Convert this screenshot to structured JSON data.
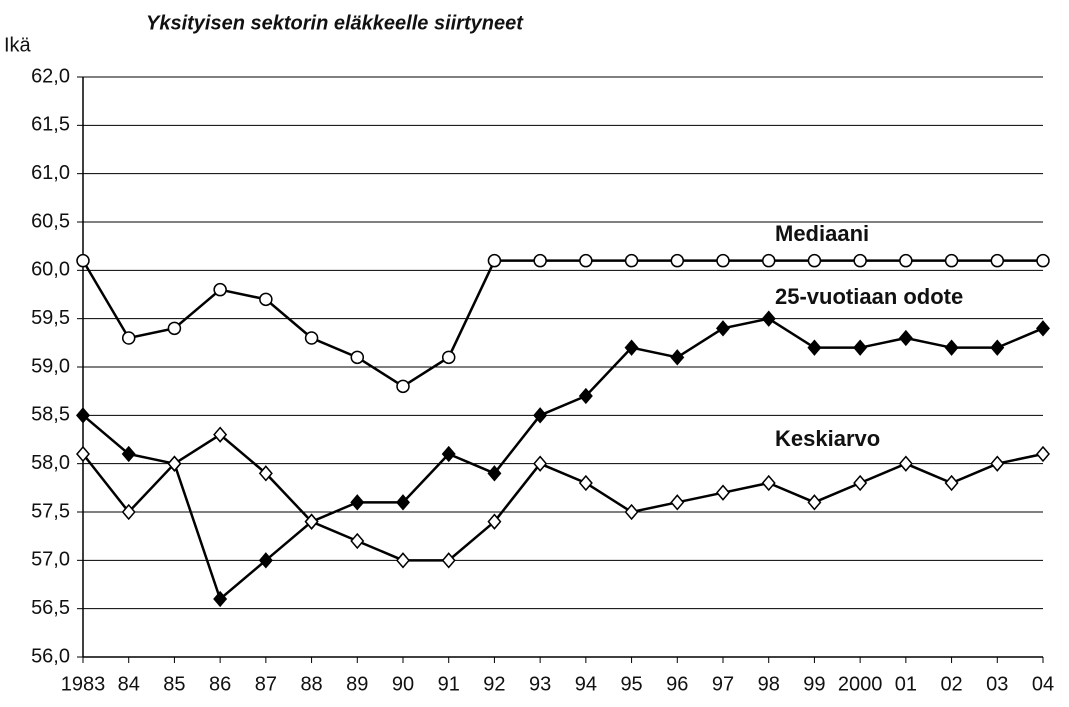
{
  "chart_data": {
    "type": "line",
    "title": "Yksityisen sektorin eläkkeelle siirtyneet",
    "y_label": "Ikä",
    "categories": [
      "1983",
      "84",
      "85",
      "86",
      "87",
      "88",
      "89",
      "90",
      "91",
      "92",
      "93",
      "94",
      "95",
      "96",
      "97",
      "98",
      "99",
      "2000",
      "01",
      "02",
      "03",
      "04"
    ],
    "series": [
      {
        "name": "Mediaani",
        "color": "#000000",
        "marker": "circle",
        "values": [
          60.1,
          59.3,
          59.4,
          59.8,
          59.7,
          59.3,
          59.1,
          58.8,
          59.1,
          60.1,
          60.1,
          60.1,
          60.1,
          60.1,
          60.1,
          60.1,
          60.1,
          60.1,
          60.1,
          60.1,
          60.1,
          60.1
        ]
      },
      {
        "name": "25-vuotiaan odote",
        "color": "#000000",
        "marker": "diamond-filled",
        "values": [
          58.5,
          58.1,
          58.0,
          56.6,
          57.0,
          57.4,
          57.6,
          57.6,
          58.1,
          57.9,
          58.5,
          58.7,
          59.2,
          59.1,
          59.4,
          59.5,
          59.2,
          59.2,
          59.3,
          59.2,
          59.2,
          59.4
        ]
      },
      {
        "name": "Keskiarvo",
        "color": "#000000",
        "marker": "diamond-open",
        "values": [
          58.1,
          57.5,
          58.0,
          58.3,
          57.9,
          57.4,
          57.2,
          57.0,
          57.0,
          57.4,
          58.0,
          57.8,
          57.5,
          57.6,
          57.7,
          57.8,
          57.6,
          57.8,
          58.0,
          57.8,
          58.0,
          58.1
        ]
      }
    ],
    "ylim": [
      56,
      62
    ],
    "yticks": [
      {
        "value": 56,
        "label": "56,0"
      },
      {
        "value": 56.5,
        "label": "56,5"
      },
      {
        "value": 57,
        "label": "57,0"
      },
      {
        "value": 57.5,
        "label": "57,5"
      },
      {
        "value": 58,
        "label": "58,0"
      },
      {
        "value": 58.5,
        "label": "58,5"
      },
      {
        "value": 59,
        "label": "59,0"
      },
      {
        "value": 59.5,
        "label": "59,5"
      },
      {
        "value": 60,
        "label": "60,0"
      },
      {
        "value": 60.5,
        "label": "60,5"
      },
      {
        "value": 61,
        "label": "61,0"
      },
      {
        "value": 61.5,
        "label": "61,5"
      },
      {
        "value": 62,
        "label": "62,0"
      }
    ],
    "grid": true
  }
}
